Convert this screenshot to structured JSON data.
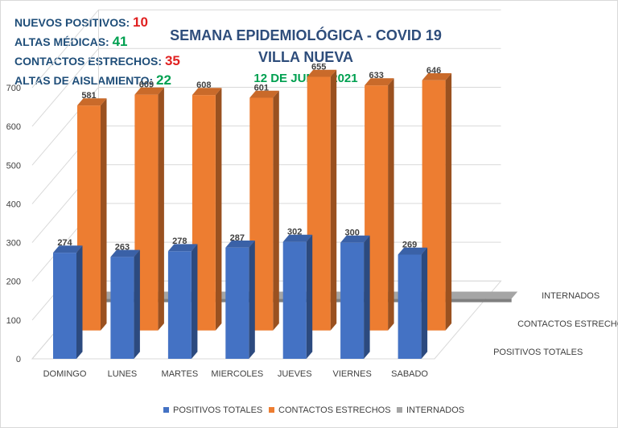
{
  "stats": [
    {
      "label": "NUEVOS POSITIVOS: ",
      "value": "10",
      "value_color": "#e02020"
    },
    {
      "label": "ALTAS MÉDICAS: ",
      "value": "41",
      "value_color": "#00a050"
    },
    {
      "label": "CONTACTOS ESTRECHOS: ",
      "value": "35",
      "value_color": "#e02020"
    },
    {
      "label": "ALTAS DE AISLAMIENTO: ",
      "value": "22",
      "value_color": "#00a050"
    }
  ],
  "title": {
    "line1": "SEMANA EPIDEMIOLÓGICA - COVID 19",
    "line2": "VILLA NUEVA",
    "date": "12 DE JUNIO 2021",
    "color": "#2e4d7b",
    "date_color": "#00a050"
  },
  "chart_data": {
    "type": "bar",
    "style": "3d-clustered",
    "categories": [
      "DOMINGO",
      "LUNES",
      "MARTES",
      "MIERCOLES",
      "JUEVES",
      "VIERNES",
      "SABADO"
    ],
    "series": [
      {
        "name": "POSITIVOS TOTALES",
        "values": [
          274,
          263,
          278,
          287,
          302,
          300,
          269
        ],
        "labels": [
          "274",
          "263",
          "278",
          "287",
          "302",
          "300",
          "269"
        ],
        "color": "#4472c4"
      },
      {
        "name": "CONTACTOS ESTRECHOS",
        "values": [
          581,
          609,
          608,
          601,
          655,
          633,
          646
        ],
        "labels": [
          "581",
          "609",
          "608",
          "601",
          "655",
          "633",
          "646"
        ],
        "color": "#ed7d31"
      },
      {
        "name": "INTERNADOS",
        "values": [
          8,
          9,
          9,
          9,
          8,
          9,
          8
        ],
        "labels": [
          "8",
          "9",
          "9",
          "9",
          "8",
          "9",
          "8"
        ],
        "color": "#a5a5a5"
      }
    ],
    "y_ticks": [
      "0",
      "100",
      "200",
      "300",
      "400",
      "500",
      "600",
      "700"
    ],
    "ylim": [
      0,
      700
    ],
    "depth_labels": [
      "INTERNADOS",
      "CONTACTOS ESTRECHOS",
      "POSITIVOS TOTALES"
    ],
    "grid": true,
    "legend_position": "bottom"
  },
  "legend": [
    {
      "label": "POSITIVOS TOTALES",
      "color": "#4472c4"
    },
    {
      "label": "CONTACTOS ESTRECHOS",
      "color": "#ed7d31"
    },
    {
      "label": "INTERNADOS",
      "color": "#a5a5a5"
    }
  ]
}
